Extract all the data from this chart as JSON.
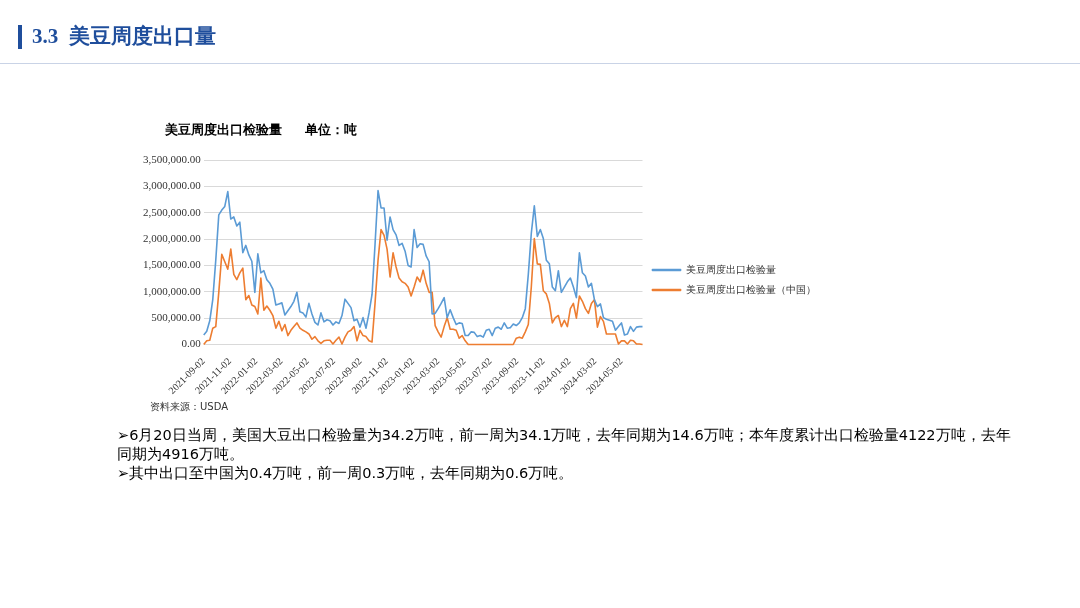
{
  "chart_data": {
    "type": "line",
    "title": "3.3  美豆周度出口量",
    "subtitle": "美豆周度出口检验量     单位：吨",
    "annotations": [
      "资料来源：USDA",
      "➢6月20日当周，美国大豆出口检验量为34.2万吨，前一周为34.1万吨，去年同期为14.6万吨；本年度累计出口检验量4122万吨，去年同期为4916万吨。",
      "➢其中出口至中国为0.4万吨，前一周0.3万吨，去年同期为0.6万吨。"
    ],
    "x": [
      "2021-09-02",
      "2021-09-09",
      "2021-09-16",
      "2021-09-23",
      "2021-09-30",
      "2021-10-07",
      "2021-10-14",
      "2021-10-21",
      "2021-10-28",
      "2021-11-04",
      "2021-11-11",
      "2021-11-18",
      "2021-11-25",
      "2021-12-02",
      "2021-12-09",
      "2021-12-16",
      "2021-12-23",
      "2021-12-30",
      "2022-01-06",
      "2022-01-13",
      "2022-01-20",
      "2022-01-27",
      "2022-02-03",
      "2022-02-10",
      "2022-02-17",
      "2022-02-24",
      "2022-03-03",
      "2022-03-10",
      "2022-03-17",
      "2022-03-24",
      "2022-03-31",
      "2022-04-07",
      "2022-04-14",
      "2022-04-21",
      "2022-04-28",
      "2022-05-05",
      "2022-05-12",
      "2022-05-19",
      "2022-05-26",
      "2022-06-02",
      "2022-06-09",
      "2022-06-16",
      "2022-06-23",
      "2022-06-30",
      "2022-07-07",
      "2022-07-14",
      "2022-07-21",
      "2022-07-28",
      "2022-08-04",
      "2022-08-11",
      "2022-08-18",
      "2022-08-25",
      "2022-09-01",
      "2022-09-08",
      "2022-09-15",
      "2022-09-22",
      "2022-09-29",
      "2022-10-06",
      "2022-10-13",
      "2022-10-20",
      "2022-10-27",
      "2022-11-03",
      "2022-11-10",
      "2022-11-17",
      "2022-11-24",
      "2022-12-01",
      "2022-12-08",
      "2022-12-15",
      "2022-12-22",
      "2022-12-29",
      "2023-01-05",
      "2023-01-12",
      "2023-01-19",
      "2023-01-26",
      "2023-02-02",
      "2023-02-09",
      "2023-02-16",
      "2023-02-23",
      "2023-03-02",
      "2023-03-09",
      "2023-03-16",
      "2023-03-23",
      "2023-03-30",
      "2023-04-06",
      "2023-04-13",
      "2023-04-20",
      "2023-04-27",
      "2023-05-04",
      "2023-05-11",
      "2023-05-18",
      "2023-05-25",
      "2023-06-01",
      "2023-06-08",
      "2023-06-15",
      "2023-06-22",
      "2023-06-29",
      "2023-07-06",
      "2023-07-13",
      "2023-07-20",
      "2023-07-27",
      "2023-08-03",
      "2023-08-10",
      "2023-08-17",
      "2023-08-24",
      "2023-08-31",
      "2023-09-07",
      "2023-09-14",
      "2023-09-21",
      "2023-09-28",
      "2023-10-05",
      "2023-10-12",
      "2023-10-19",
      "2023-10-26",
      "2023-11-02",
      "2023-11-09",
      "2023-11-16",
      "2023-11-23",
      "2023-11-30",
      "2023-12-07",
      "2023-12-14",
      "2023-12-21",
      "2023-12-28",
      "2024-01-04",
      "2024-01-11",
      "2024-01-18",
      "2024-01-25",
      "2024-02-01",
      "2024-02-08",
      "2024-02-15",
      "2024-02-22",
      "2024-02-29",
      "2024-03-07",
      "2024-03-14",
      "2024-03-21",
      "2024-03-28",
      "2024-04-04",
      "2024-04-11",
      "2024-04-18",
      "2024-04-25",
      "2024-05-02",
      "2024-05-09",
      "2024-05-16",
      "2024-05-23",
      "2024-05-30",
      "2024-06-06",
      "2024-06-13",
      "2024-06-20"
    ],
    "series": [
      {
        "name": "美豆周度出口检验量",
        "color": "#5b9bd5",
        "values": [
          180000,
          250000,
          450000,
          850000,
          1600000,
          2460000,
          2550000,
          2620000,
          2900000,
          2380000,
          2420000,
          2250000,
          2320000,
          1740000,
          1880000,
          1700000,
          1580000,
          990000,
          1720000,
          1360000,
          1400000,
          1230000,
          1160000,
          1050000,
          750000,
          770000,
          790000,
          560000,
          640000,
          720000,
          820000,
          990000,
          620000,
          600000,
          520000,
          780000,
          580000,
          420000,
          370000,
          600000,
          430000,
          470000,
          450000,
          370000,
          430000,
          400000,
          550000,
          860000,
          780000,
          700000,
          450000,
          480000,
          330000,
          510000,
          310000,
          600000,
          950000,
          1900000,
          2920000,
          2590000,
          2590000,
          1980000,
          2420000,
          2180000,
          2080000,
          1880000,
          1920000,
          1770000,
          1500000,
          1470000,
          2180000,
          1840000,
          1910000,
          1900000,
          1680000,
          1570000,
          580000,
          590000,
          680000,
          780000,
          890000,
          510000,
          660000,
          510000,
          380000,
          410000,
          400000,
          170000,
          170000,
          240000,
          230000,
          150000,
          170000,
          140000,
          270000,
          290000,
          170000,
          310000,
          330000,
          290000,
          410000,
          310000,
          320000,
          390000,
          360000,
          410000,
          510000,
          680000,
          1330000,
          2110000,
          2630000,
          2050000,
          2180000,
          2010000,
          1600000,
          1530000,
          1090000,
          1020000,
          1400000,
          990000,
          1090000,
          1190000,
          1260000,
          1090000,
          890000,
          1740000,
          1360000,
          1300000,
          1090000,
          1160000,
          850000,
          720000,
          770000,
          510000,
          480000,
          460000,
          440000,
          270000,
          340000,
          410000,
          180000,
          200000,
          340000,
          250000,
          330000,
          340000,
          340000
        ]
      },
      {
        "name": "美豆周度出口检验量（中国）",
        "color": "#ed7d31",
        "values": [
          0,
          70000,
          80000,
          310000,
          340000,
          990000,
          1710000,
          1570000,
          1430000,
          1810000,
          1330000,
          1230000,
          1360000,
          1450000,
          850000,
          930000,
          750000,
          720000,
          580000,
          1260000,
          650000,
          730000,
          650000,
          550000,
          310000,
          440000,
          260000,
          380000,
          170000,
          270000,
          340000,
          410000,
          310000,
          270000,
          240000,
          200000,
          100000,
          150000,
          70000,
          20000,
          70000,
          80000,
          80000,
          10000,
          80000,
          140000,
          10000,
          140000,
          240000,
          270000,
          340000,
          70000,
          270000,
          170000,
          150000,
          70000,
          50000,
          780000,
          1600000,
          2180000,
          2070000,
          1810000,
          1280000,
          1740000,
          1470000,
          1260000,
          1190000,
          1160000,
          1090000,
          920000,
          1090000,
          1280000,
          1190000,
          1410000,
          1160000,
          990000,
          990000,
          360000,
          240000,
          140000,
          340000,
          510000,
          290000,
          290000,
          270000,
          120000,
          170000,
          70000,
          0,
          0,
          0,
          0,
          0,
          0,
          0,
          0,
          0,
          0,
          0,
          0,
          0,
          0,
          0,
          0,
          120000,
          140000,
          120000,
          240000,
          380000,
          1090000,
          2010000,
          1530000,
          1520000,
          1020000,
          960000,
          780000,
          410000,
          510000,
          550000,
          340000,
          460000,
          340000,
          680000,
          780000,
          500000,
          920000,
          820000,
          680000,
          590000,
          780000,
          850000,
          330000,
          530000,
          440000,
          200000,
          200000,
          200000,
          200000,
          10000,
          70000,
          70000,
          10000,
          80000,
          70000,
          10000,
          10000,
          0
        ]
      }
    ],
    "xlim": [
      "2021-09-02",
      "2024-06-20"
    ],
    "xticks": [
      "2021-09-02",
      "2021-11-02",
      "2022-01-02",
      "2022-03-02",
      "2022-05-02",
      "2022-07-02",
      "2022-09-02",
      "2022-11-02",
      "2023-01-02",
      "2023-03-02",
      "2023-05-02",
      "2023-07-02",
      "2023-09-02",
      "2023-11-02",
      "2024-01-02",
      "2024-03-02",
      "2024-05-02"
    ],
    "ylim": [
      0,
      3500000
    ],
    "yticks": [
      {
        "value": 0,
        "label": "0.00"
      },
      {
        "value": 500000,
        "label": "500,000.00"
      },
      {
        "value": 1000000,
        "label": "1,000,000.00"
      },
      {
        "value": 1500000,
        "label": "1,500,000.00"
      },
      {
        "value": 2000000,
        "label": "2,000,000.00"
      },
      {
        "value": 2500000,
        "label": "2,500,000.00"
      },
      {
        "value": 3000000,
        "label": "3,000,000.00"
      },
      {
        "value": 3500000,
        "label": "3,500,000.00"
      }
    ],
    "grid": "y",
    "legend": "right",
    "marker": "none",
    "line_style": "solid"
  }
}
